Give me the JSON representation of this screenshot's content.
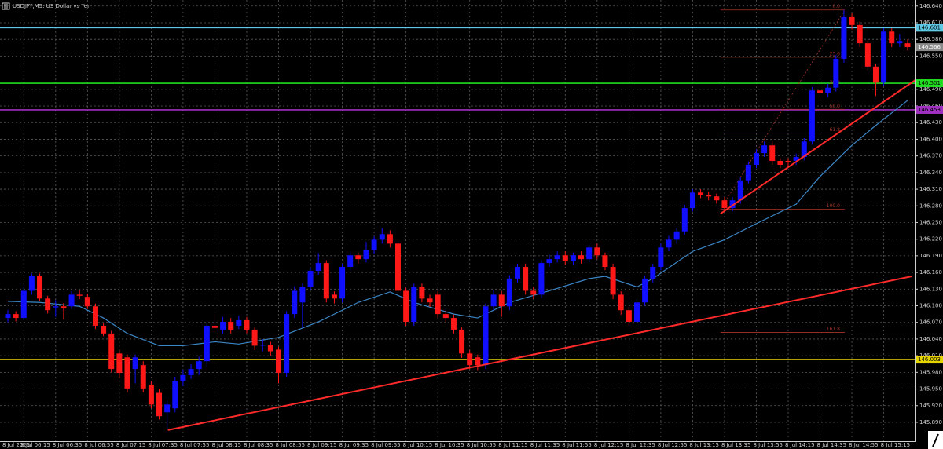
{
  "chart_data": {
    "type": "candlestick",
    "title": "USDJPY,M5: US Dollar vs Yen",
    "categories": [
      "8 Jul 2025",
      null,
      "8 Jul 06:15",
      null,
      null,
      null,
      "8 Jul 06:35",
      null,
      null,
      null,
      "8 Jul 06:55",
      null,
      null,
      null,
      "8 Jul 07:15",
      null,
      null,
      null,
      "8 Jul 07:35",
      null,
      null,
      null,
      "8 Jul 07:55",
      null,
      null,
      null,
      "8 Jul 08:15",
      null,
      null,
      null,
      "8 Jul 08:35",
      null,
      null,
      null,
      "8 Jul 08:55",
      null,
      null,
      null,
      "8 Jul 09:15",
      null,
      null,
      null,
      "8 Jul 09:35",
      null,
      null,
      null,
      "8 Jul 09:55",
      null,
      null,
      null,
      "8 Jul 10:15",
      null,
      null,
      null,
      "8 Jul 10:35",
      null,
      null,
      null,
      "8 Jul 10:55",
      null,
      null,
      null,
      "8 Jul 11:15",
      null,
      null,
      null,
      "8 Jul 11:35",
      null,
      null,
      null,
      "8 Jul 11:55",
      null,
      null,
      null,
      "8 Jul 12:15",
      null,
      null,
      null,
      "8 Jul 12:35",
      null,
      null,
      null,
      "8 Jul 12:55",
      null,
      null,
      null,
      "8 Jul 13:15",
      null,
      null,
      null,
      "8 Jul 13:35",
      null,
      null,
      null,
      "8 Jul 13:55",
      null,
      null,
      null,
      "8 Jul 14:15",
      null,
      null,
      null,
      "8 Jul 14:35",
      null,
      null,
      null,
      "8 Jul 14:55",
      null,
      null,
      null,
      "8 Jul 15:15",
      null,
      null,
      null
    ],
    "ohlc": [
      [
        146.078,
        146.092,
        146.07,
        146.085
      ],
      [
        146.085,
        146.09,
        146.072,
        146.078
      ],
      [
        146.078,
        146.132,
        146.074,
        146.127
      ],
      [
        146.127,
        146.158,
        146.12,
        146.153
      ],
      [
        146.153,
        146.158,
        146.108,
        146.113
      ],
      [
        146.113,
        146.118,
        146.086,
        146.092
      ],
      [
        146.097,
        146.11,
        146.08,
        146.099
      ],
      [
        146.099,
        146.105,
        146.075,
        146.095
      ],
      [
        146.099,
        146.126,
        146.094,
        146.12
      ],
      [
        146.12,
        146.128,
        146.112,
        146.118
      ],
      [
        146.116,
        146.122,
        146.094,
        146.099
      ],
      [
        146.099,
        146.104,
        146.058,
        146.064
      ],
      [
        146.064,
        146.068,
        146.045,
        146.05
      ],
      [
        146.05,
        146.055,
        145.98,
        145.986
      ],
      [
        146.014,
        146.02,
        145.97,
        145.979
      ],
      [
        146.007,
        146.012,
        145.944,
        145.951
      ],
      [
        145.986,
        146.012,
        145.96,
        146.007
      ],
      [
        145.993,
        146.0,
        145.944,
        145.951
      ],
      [
        145.958,
        145.964,
        145.915,
        145.922
      ],
      [
        145.943,
        145.95,
        145.895,
        145.901
      ],
      [
        145.908,
        145.93,
        145.876,
        145.922
      ],
      [
        145.915,
        145.972,
        145.908,
        145.965
      ],
      [
        145.965,
        145.985,
        145.955,
        145.975
      ],
      [
        145.975,
        145.995,
        145.968,
        145.986
      ],
      [
        145.986,
        146.008,
        145.975,
        146.0
      ],
      [
        146.0,
        146.07,
        145.99,
        146.064
      ],
      [
        146.064,
        146.085,
        146.05,
        146.06
      ],
      [
        146.057,
        146.08,
        146.05,
        146.071
      ],
      [
        146.071,
        146.078,
        146.05,
        146.057
      ],
      [
        146.064,
        146.082,
        146.058,
        146.074
      ],
      [
        146.074,
        146.08,
        146.05,
        146.057
      ],
      [
        146.057,
        146.062,
        146.02,
        146.028
      ],
      [
        146.028,
        146.04,
        146.018,
        146.03
      ],
      [
        146.03,
        146.035,
        146.01,
        146.018
      ],
      [
        146.021,
        146.026,
        145.96,
        145.979
      ],
      [
        145.979,
        146.09,
        145.972,
        146.085
      ],
      [
        146.085,
        146.135,
        146.078,
        146.127
      ],
      [
        146.106,
        146.14,
        146.06,
        146.134
      ],
      [
        146.134,
        146.168,
        146.128,
        146.163
      ],
      [
        146.163,
        146.195,
        146.156,
        146.177
      ],
      [
        146.177,
        146.182,
        146.106,
        146.113
      ],
      [
        146.12,
        146.126,
        146.104,
        146.113
      ],
      [
        146.113,
        146.176,
        146.106,
        146.17
      ],
      [
        146.17,
        146.198,
        146.164,
        146.191
      ],
      [
        146.191,
        146.196,
        146.176,
        146.184
      ],
      [
        146.184,
        146.215,
        146.178,
        146.201
      ],
      [
        146.201,
        146.225,
        146.194,
        146.219
      ],
      [
        146.219,
        146.24,
        146.212,
        146.229
      ],
      [
        146.229,
        146.236,
        146.205,
        146.212
      ],
      [
        146.212,
        146.218,
        146.12,
        146.127
      ],
      [
        146.127,
        146.132,
        146.064,
        146.071
      ],
      [
        146.071,
        146.14,
        146.064,
        146.134
      ],
      [
        146.134,
        146.14,
        146.106,
        146.113
      ],
      [
        146.113,
        146.12,
        146.098,
        146.106
      ],
      [
        146.12,
        146.126,
        146.078,
        146.085
      ],
      [
        146.085,
        146.092,
        146.07,
        146.078
      ],
      [
        146.078,
        146.084,
        146.05,
        146.057
      ],
      [
        146.057,
        146.062,
        146.006,
        146.014
      ],
      [
        146.014,
        146.02,
        145.986,
        145.993
      ],
      [
        146.007,
        146.012,
        145.984,
        145.993
      ],
      [
        145.993,
        146.104,
        145.986,
        146.099
      ],
      [
        146.099,
        146.128,
        146.092,
        146.12
      ],
      [
        146.12,
        146.126,
        146.08,
        146.099
      ],
      [
        146.099,
        146.155,
        146.092,
        146.149
      ],
      [
        146.149,
        146.176,
        146.142,
        146.17
      ],
      [
        146.17,
        146.176,
        146.12,
        146.127
      ],
      [
        146.127,
        146.134,
        146.112,
        146.12
      ],
      [
        146.12,
        146.182,
        146.114,
        146.177
      ],
      [
        146.177,
        146.192,
        146.17,
        146.184
      ],
      [
        146.184,
        146.198,
        146.178,
        146.191
      ],
      [
        146.191,
        146.198,
        146.174,
        146.18
      ],
      [
        146.18,
        146.196,
        146.174,
        146.191
      ],
      [
        146.191,
        146.198,
        146.176,
        146.184
      ],
      [
        146.184,
        146.21,
        146.178,
        146.205
      ],
      [
        146.205,
        146.212,
        146.184,
        146.191
      ],
      [
        146.191,
        146.196,
        146.164,
        146.17
      ],
      [
        146.17,
        146.176,
        146.112,
        146.12
      ],
      [
        146.12,
        146.126,
        146.084,
        146.092
      ],
      [
        146.092,
        146.098,
        146.064,
        146.071
      ],
      [
        146.071,
        146.112,
        146.064,
        146.106
      ],
      [
        146.106,
        146.154,
        146.1,
        146.149
      ],
      [
        146.149,
        146.176,
        146.142,
        146.17
      ],
      [
        146.17,
        146.212,
        146.164,
        146.205
      ],
      [
        146.205,
        146.226,
        146.198,
        146.219
      ],
      [
        146.219,
        146.24,
        146.212,
        146.234
      ],
      [
        146.234,
        146.282,
        146.228,
        146.276
      ],
      [
        146.276,
        146.31,
        146.27,
        146.304
      ],
      [
        146.304,
        146.31,
        146.294,
        146.3
      ],
      [
        146.3,
        146.306,
        146.29,
        146.297
      ],
      [
        146.297,
        146.302,
        146.284,
        146.29
      ],
      [
        146.29,
        146.296,
        146.27,
        146.276
      ],
      [
        146.276,
        146.296,
        146.27,
        146.29
      ],
      [
        146.29,
        146.332,
        146.284,
        146.326
      ],
      [
        146.326,
        146.36,
        146.32,
        146.354
      ],
      [
        146.354,
        146.382,
        146.348,
        146.375
      ],
      [
        146.375,
        146.396,
        146.368,
        146.389
      ],
      [
        146.389,
        146.396,
        146.354,
        146.361
      ],
      [
        146.361,
        146.366,
        146.348,
        146.354
      ],
      [
        146.361,
        146.366,
        146.352,
        146.359
      ],
      [
        146.361,
        146.374,
        146.354,
        146.368
      ],
      [
        146.368,
        146.402,
        146.362,
        146.396
      ],
      [
        146.396,
        146.494,
        146.39,
        146.488
      ],
      [
        146.488,
        146.494,
        146.478,
        146.484
      ],
      [
        146.484,
        146.5,
        146.476,
        146.493
      ],
      [
        146.493,
        146.552,
        146.486,
        146.545
      ],
      [
        146.545,
        146.633,
        146.538,
        146.62
      ],
      [
        146.62,
        146.628,
        146.598,
        146.606
      ],
      [
        146.606,
        146.612,
        146.566,
        146.573
      ],
      [
        146.573,
        146.578,
        146.524,
        146.531
      ],
      [
        146.531,
        146.536,
        146.478,
        146.502
      ],
      [
        146.502,
        146.6,
        146.496,
        146.594
      ],
      [
        146.594,
        146.6,
        146.566,
        146.573
      ],
      [
        146.573,
        146.59,
        146.566,
        146.577
      ],
      [
        146.573,
        146.58,
        146.56,
        146.566
      ]
    ],
    "up_color": "#1010ff",
    "down_color": "#ff1818",
    "ma": {
      "color": "#3b86c6",
      "x": [
        0,
        4,
        9,
        12,
        15,
        19,
        22,
        26,
        29,
        34,
        39,
        44,
        48,
        51,
        56,
        59,
        63,
        68,
        73,
        75,
        79,
        81,
        86,
        90,
        94,
        99,
        102,
        106,
        109,
        113
      ],
      "values": [
        146.108,
        146.106,
        146.099,
        146.078,
        146.05,
        146.028,
        146.028,
        146.035,
        146.031,
        146.043,
        146.071,
        146.106,
        146.125,
        146.106,
        146.085,
        146.078,
        146.106,
        146.127,
        146.149,
        146.153,
        146.134,
        146.149,
        146.198,
        146.219,
        146.248,
        146.283,
        146.333,
        146.389,
        146.425,
        146.47
      ]
    },
    "ylim": [
      145.856,
      146.651
    ],
    "yticks": [
      {
        "value": 146.64,
        "label": "146.640"
      },
      {
        "value": 146.61,
        "label": "146.610"
      },
      {
        "value": 146.58,
        "label": "146.580"
      },
      {
        "value": 146.55,
        "label": "146.550"
      },
      {
        "value": 146.49,
        "label": "146.490"
      },
      {
        "value": 146.46,
        "label": "146.460"
      },
      {
        "value": 146.43,
        "label": "146.430"
      },
      {
        "value": 146.4,
        "label": "146.400"
      },
      {
        "value": 146.37,
        "label": "146.370"
      },
      {
        "value": 146.34,
        "label": "146.340"
      },
      {
        "value": 146.31,
        "label": "146.310"
      },
      {
        "value": 146.28,
        "label": "146.280"
      },
      {
        "value": 146.25,
        "label": "146.250"
      },
      {
        "value": 146.22,
        "label": "146.220"
      },
      {
        "value": 146.19,
        "label": "146.190"
      },
      {
        "value": 146.16,
        "label": "146.160"
      },
      {
        "value": 146.13,
        "label": "146.130"
      },
      {
        "value": 146.1,
        "label": "146.100"
      },
      {
        "value": 146.07,
        "label": "146.070"
      },
      {
        "value": 146.04,
        "label": "146.040"
      },
      {
        "value": 146.01,
        "label": "146.010"
      },
      {
        "value": 145.98,
        "label": "145.980"
      },
      {
        "value": 145.95,
        "label": "145.950"
      },
      {
        "value": 145.92,
        "label": "145.920"
      },
      {
        "value": 145.89,
        "label": "145.890"
      }
    ],
    "grid": true,
    "levels": [
      {
        "value": 146.601,
        "label": "146.601",
        "color": "#5ec8e6"
      },
      {
        "value": 146.501,
        "label": "146.501",
        "color": "#22dd22"
      },
      {
        "value": 146.453,
        "label": "146.453",
        "color": "#a030c0"
      },
      {
        "value": 146.003,
        "label": "146.003",
        "color": "#e6d400"
      }
    ],
    "current_price": {
      "value": 146.566,
      "label": "146.566",
      "color": "#8a8a8a"
    },
    "trendlines": [
      {
        "color": "#ff2a2a",
        "x": [
          20.1,
          113.5
        ],
        "values": [
          145.876,
          146.153
        ]
      },
      {
        "color": "#ff2a2a",
        "x": [
          89.5,
          114
        ],
        "values": [
          146.266,
          146.507
        ]
      }
    ],
    "fibonacci": {
      "color": "#a8352c",
      "x": [
        89.5,
        105.1
      ],
      "levels": [
        {
          "value": 146.633,
          "label": "0.0"
        },
        {
          "value": 146.548,
          "label": "23.6"
        },
        {
          "value": 146.496,
          "label": "38.2"
        },
        {
          "value": 146.454,
          "label": "50.0"
        },
        {
          "value": 146.411,
          "label": "61.8"
        },
        {
          "value": 146.274,
          "label": "100.0"
        },
        {
          "value": 146.052,
          "label": "161.8"
        }
      ]
    }
  }
}
